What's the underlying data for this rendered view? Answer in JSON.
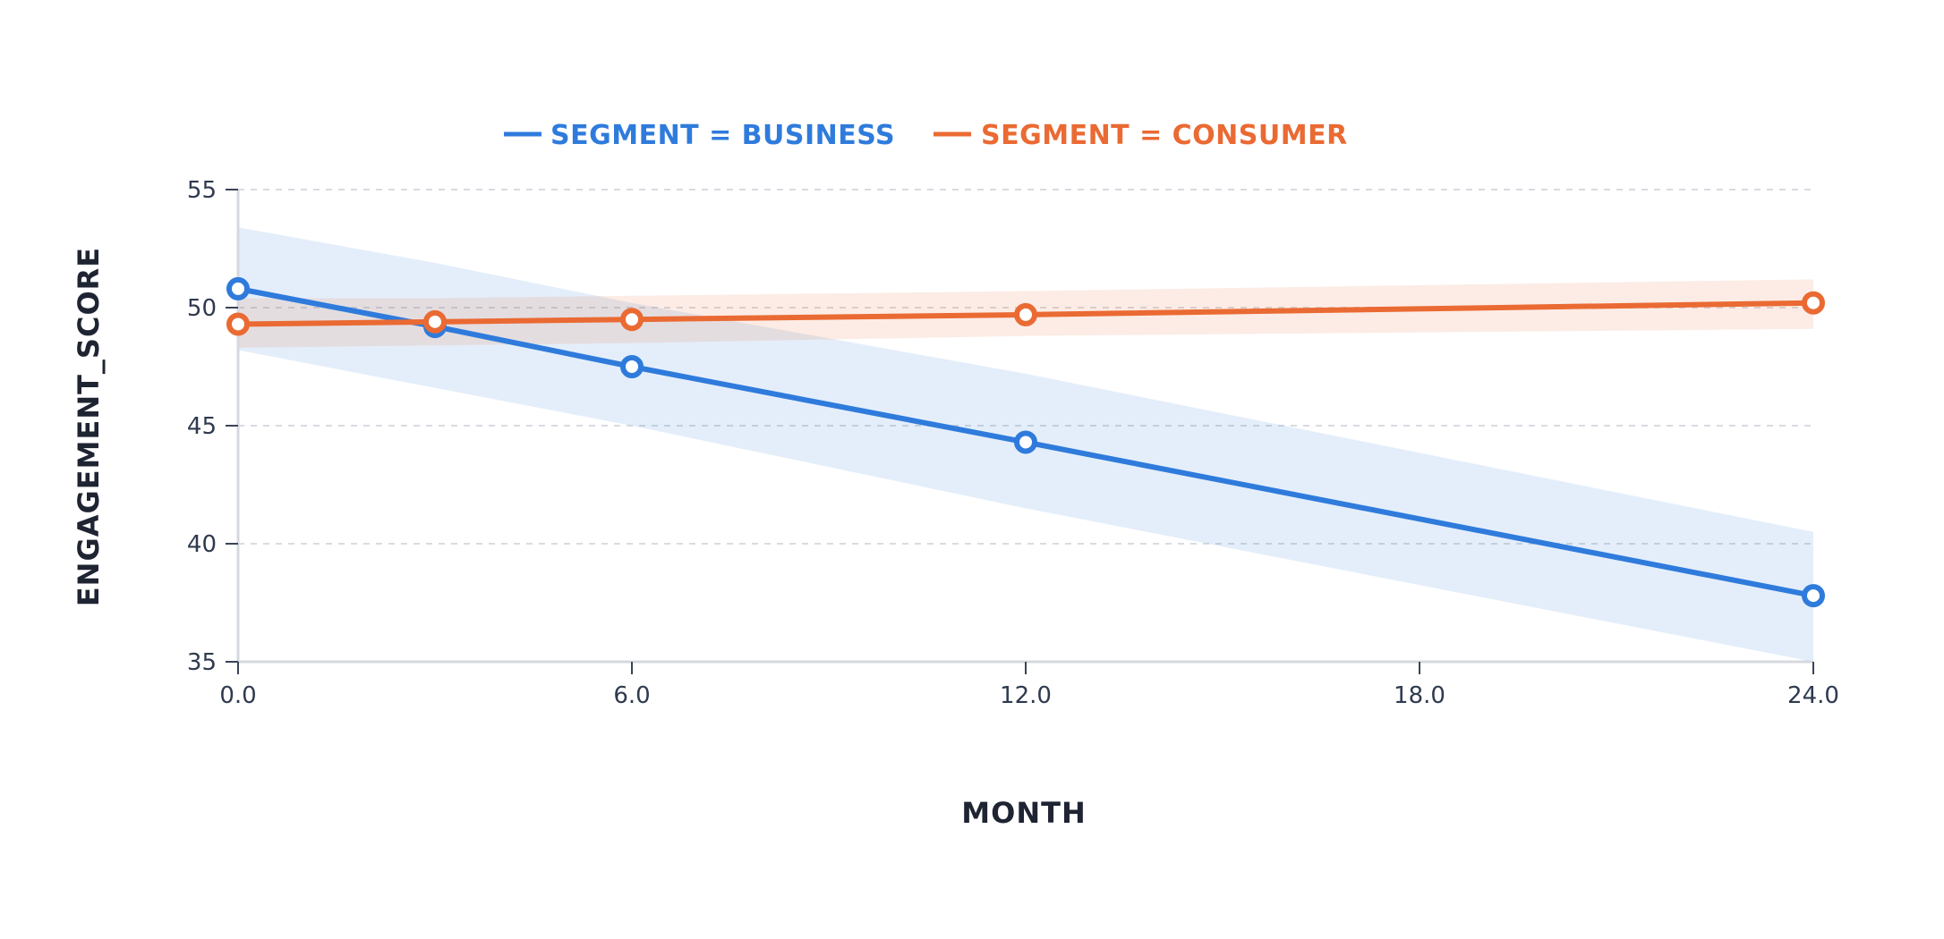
{
  "chart_data": {
    "type": "line",
    "xlabel": "MONTH",
    "ylabel": "ENGAGEMENT_SCORE",
    "xlim": [
      0,
      24
    ],
    "ylim": [
      35,
      55
    ],
    "xticks": [
      0,
      6,
      12,
      18,
      24
    ],
    "xtick_labels": [
      "0.0",
      "6.0",
      "12.0",
      "18.0",
      "24.0"
    ],
    "yticks": [
      35,
      40,
      45,
      50,
      55
    ],
    "ytick_labels": [
      "35",
      "40",
      "45",
      "50",
      "55"
    ],
    "grid": "horizontal dashed",
    "legend_position": "top",
    "series": [
      {
        "name": "SEGMENT = BUSINESS",
        "color": "#2f7bdc",
        "band_color": "#dbe7f6",
        "x": [
          0,
          3,
          6,
          12,
          24
        ],
        "values": [
          50.8,
          49.2,
          47.5,
          44.3,
          37.8
        ],
        "ci_lower": [
          48.2,
          46.6,
          45.0,
          41.5,
          35.0
        ],
        "ci_upper": [
          53.4,
          51.9,
          50.2,
          47.2,
          40.5
        ]
      },
      {
        "name": "SEGMENT = CONSUMER",
        "color": "#ea6a33",
        "band_color": "#fbe2d7",
        "x": [
          0,
          3,
          6,
          12,
          24
        ],
        "values": [
          49.3,
          49.4,
          49.5,
          49.7,
          50.2
        ],
        "ci_lower": [
          48.3,
          48.4,
          48.5,
          48.8,
          49.1
        ],
        "ci_upper": [
          50.4,
          50.4,
          50.5,
          50.7,
          51.2
        ]
      }
    ]
  },
  "colors": {
    "axis": "#d5d8de",
    "grid": "#d8dbe1",
    "tick_text": "#2f3a4f",
    "title_text": "#1f2433"
  }
}
